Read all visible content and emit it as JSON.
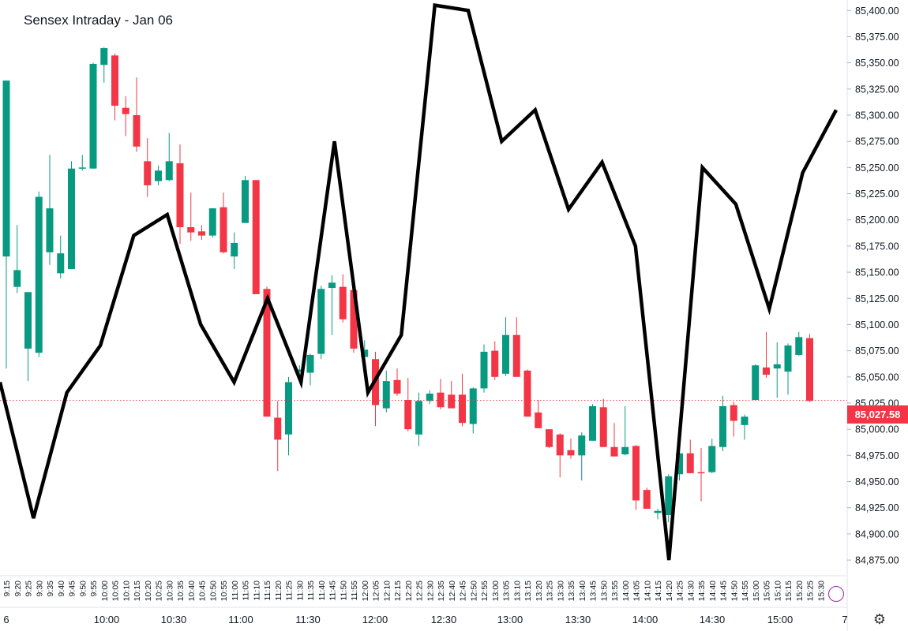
{
  "chart_data": {
    "type": "candlestick+line",
    "title": "Sensex Intraday - Jan 06",
    "current_price": "85,027.58",
    "current_price_value": 85027.58,
    "ylim": [
      84860,
      85410
    ],
    "y_ticks": [
      "84,875.00",
      "84,900.00",
      "84,925.00",
      "84,950.00",
      "84,975.00",
      "85,000.00",
      "85,025.00",
      "85,050.00",
      "85,075.00",
      "85,100.00",
      "85,125.00",
      "85,150.00",
      "85,175.00",
      "85,200.00",
      "85,225.00",
      "85,250.00",
      "85,275.00",
      "85,300.00",
      "85,325.00",
      "85,350.00",
      "85,375.00",
      "85,400.00"
    ],
    "x_ticks_small": [
      "9:15",
      "9:20",
      "9:25",
      "9:30",
      "9:35",
      "9:40",
      "9:45",
      "9:50",
      "9:55",
      "10:00",
      "10:05",
      "10:10",
      "10:15",
      "10:20",
      "10:25",
      "10:30",
      "10:35",
      "10:40",
      "10:45",
      "10:50",
      "10:55",
      "11:00",
      "11:05",
      "11:10",
      "11:15",
      "11:20",
      "11:25",
      "11:30",
      "11:35",
      "11:40",
      "11:45",
      "11:50",
      "11:55",
      "12:00",
      "12:05",
      "12:10",
      "12:15",
      "12:20",
      "12:25",
      "12:30",
      "12:35",
      "12:40",
      "12:45",
      "12:50",
      "12:55",
      "13:00",
      "13:05",
      "13:10",
      "13:15",
      "13:20",
      "13:25",
      "13:30",
      "13:35",
      "13:40",
      "13:45",
      "13:50",
      "13:55",
      "14:00",
      "14:05",
      "14:10",
      "14:15",
      "14:20",
      "14:25",
      "14:30",
      "14:35",
      "14:40",
      "14:45",
      "14:50",
      "14:55",
      "15:00",
      "15:05",
      "15:10",
      "15:15",
      "15:20",
      "15:25",
      "15:30"
    ],
    "x_ticks_large": [
      "6",
      "10:00",
      "10:30",
      "11:00",
      "11:30",
      "12:00",
      "12:30",
      "13:00",
      "13:30",
      "14:00",
      "14:30",
      "15:00",
      "7"
    ],
    "candles": [
      {
        "o": 85165,
        "h": 85333,
        "l": 85058,
        "c": 85333
      },
      {
        "o": 85136,
        "h": 85195,
        "l": 85130,
        "c": 85152
      },
      {
        "o": 85077,
        "h": 85130,
        "l": 85046,
        "c": 85131
      },
      {
        "o": 85073,
        "h": 85227,
        "l": 85069,
        "c": 85222
      },
      {
        "o": 85169,
        "h": 85262,
        "l": 85157,
        "c": 85211
      },
      {
        "o": 85149,
        "h": 85185,
        "l": 85144,
        "c": 85168
      },
      {
        "o": 85153,
        "h": 85256,
        "l": 85153,
        "c": 85249
      },
      {
        "o": 85250,
        "h": 85262,
        "l": 85247,
        "c": 85250
      },
      {
        "o": 85249,
        "h": 85350,
        "l": 85249,
        "c": 85349
      },
      {
        "o": 85348,
        "h": 85365,
        "l": 85331,
        "c": 85364
      },
      {
        "o": 85357,
        "h": 85359,
        "l": 85295,
        "c": 85309
      },
      {
        "o": 85307,
        "h": 85318,
        "l": 85280,
        "c": 85301
      },
      {
        "o": 85300,
        "h": 85336,
        "l": 85265,
        "c": 85270
      },
      {
        "o": 85256,
        "h": 85278,
        "l": 85222,
        "c": 85233
      },
      {
        "o": 85237,
        "h": 85252,
        "l": 85233,
        "c": 85247
      },
      {
        "o": 85238,
        "h": 85283,
        "l": 85237,
        "c": 85256
      },
      {
        "o": 85254,
        "h": 85272,
        "l": 85177,
        "c": 85193
      },
      {
        "o": 85193,
        "h": 85226,
        "l": 85180,
        "c": 85188
      },
      {
        "o": 85189,
        "h": 85195,
        "l": 85181,
        "c": 85185
      },
      {
        "o": 85185,
        "h": 85211,
        "l": 85183,
        "c": 85211
      },
      {
        "o": 85212,
        "h": 85226,
        "l": 85168,
        "c": 85169
      },
      {
        "o": 85165,
        "h": 85188,
        "l": 85153,
        "c": 85178
      },
      {
        "o": 85197,
        "h": 85242,
        "l": 85197,
        "c": 85238
      },
      {
        "o": 85238,
        "h": 85238,
        "l": 85129,
        "c": 85129
      },
      {
        "o": 85134,
        "h": 85136,
        "l": 85012,
        "c": 85012
      },
      {
        "o": 85011,
        "h": 85027,
        "l": 84960,
        "c": 84990
      },
      {
        "o": 84995,
        "h": 85050,
        "l": 84975,
        "c": 85045
      },
      {
        "o": 85055,
        "h": 85061,
        "l": 85050,
        "c": 85057
      },
      {
        "o": 85054,
        "h": 85072,
        "l": 85042,
        "c": 85071
      },
      {
        "o": 85072,
        "h": 85137,
        "l": 85067,
        "c": 85134
      },
      {
        "o": 85135,
        "h": 85147,
        "l": 85090,
        "c": 85140
      },
      {
        "o": 85136,
        "h": 85148,
        "l": 85102,
        "c": 85105
      },
      {
        "o": 85133,
        "h": 85136,
        "l": 85073,
        "c": 85077
      },
      {
        "o": 85069,
        "h": 85085,
        "l": 85064,
        "c": 85076
      },
      {
        "o": 85067,
        "h": 85074,
        "l": 85003,
        "c": 85023
      },
      {
        "o": 85020,
        "h": 85056,
        "l": 85016,
        "c": 85046
      },
      {
        "o": 85047,
        "h": 85058,
        "l": 85032,
        "c": 85034
      },
      {
        "o": 85028,
        "h": 85049,
        "l": 84998,
        "c": 85000
      },
      {
        "o": 84995,
        "h": 85035,
        "l": 84984,
        "c": 85027
      },
      {
        "o": 85027,
        "h": 85037,
        "l": 85024,
        "c": 85034
      },
      {
        "o": 85035,
        "h": 85048,
        "l": 85019,
        "c": 85021
      },
      {
        "o": 85033,
        "h": 85046,
        "l": 85020,
        "c": 85020
      },
      {
        "o": 85033,
        "h": 85053,
        "l": 85003,
        "c": 85006
      },
      {
        "o": 85005,
        "h": 85040,
        "l": 84996,
        "c": 85039
      },
      {
        "o": 85039,
        "h": 85081,
        "l": 85035,
        "c": 85074
      },
      {
        "o": 85075,
        "h": 85084,
        "l": 85047,
        "c": 85050
      },
      {
        "o": 85053,
        "h": 85107,
        "l": 85051,
        "c": 85090
      },
      {
        "o": 85090,
        "h": 85107,
        "l": 85050,
        "c": 85050
      },
      {
        "o": 85056,
        "h": 85057,
        "l": 85012,
        "c": 85012
      },
      {
        "o": 85016,
        "h": 85028,
        "l": 85005,
        "c": 85001
      },
      {
        "o": 85000,
        "h": 84999,
        "l": 84982,
        "c": 84983
      },
      {
        "o": 84995,
        "h": 84996,
        "l": 84954,
        "c": 84975
      },
      {
        "o": 84980,
        "h": 84991,
        "l": 84972,
        "c": 84975
      },
      {
        "o": 84975,
        "h": 84997,
        "l": 84951,
        "c": 84994
      },
      {
        "o": 84989,
        "h": 85024,
        "l": 84989,
        "c": 85022
      },
      {
        "o": 85021,
        "h": 85029,
        "l": 84983,
        "c": 84983
      },
      {
        "o": 84983,
        "h": 85006,
        "l": 84974,
        "c": 84974
      },
      {
        "o": 84976,
        "h": 85022,
        "l": 84975,
        "c": 84983
      },
      {
        "o": 84984,
        "h": 84985,
        "l": 84923,
        "c": 84932
      },
      {
        "o": 84942,
        "h": 84944,
        "l": 84924,
        "c": 84924
      },
      {
        "o": 84920,
        "h": 84924,
        "l": 84914,
        "c": 84922
      },
      {
        "o": 84918,
        "h": 84957,
        "l": 84911,
        "c": 84955
      },
      {
        "o": 84957,
        "h": 84982,
        "l": 84951,
        "c": 84977
      },
      {
        "o": 84977,
        "h": 84990,
        "l": 84958,
        "c": 84958
      },
      {
        "o": 84959,
        "h": 84982,
        "l": 84931,
        "c": 84958
      },
      {
        "o": 84959,
        "h": 84991,
        "l": 84958,
        "c": 84984
      },
      {
        "o": 84983,
        "h": 85032,
        "l": 84979,
        "c": 85022
      },
      {
        "o": 85023,
        "h": 85026,
        "l": 84993,
        "c": 85008
      },
      {
        "o": 85004,
        "h": 85014,
        "l": 84990,
        "c": 85012
      },
      {
        "o": 85028,
        "h": 85062,
        "l": 85028,
        "c": 85061
      },
      {
        "o": 85059,
        "h": 85093,
        "l": 85049,
        "c": 85052
      },
      {
        "o": 85058,
        "h": 85083,
        "l": 85030,
        "c": 85062
      },
      {
        "o": 85055,
        "h": 85082,
        "l": 85033,
        "c": 85080
      },
      {
        "o": 85071,
        "h": 85093,
        "l": 85070,
        "c": 85088
      },
      {
        "o": 85087,
        "h": 85091,
        "l": 85026,
        "c": 85027
      }
    ],
    "line_y": [
      85045,
      84915,
      85035,
      85080,
      85185,
      85205,
      85100,
      85045,
      85125,
      85045,
      85275,
      85035,
      85090,
      85405,
      85400,
      85275,
      85305,
      85210,
      85255,
      85175,
      84875,
      85250,
      85215,
      85115,
      85245,
      85305
    ],
    "colors": {
      "up": "#089981",
      "down": "#f23645",
      "line": "#000000",
      "grid": "#f0f3fa",
      "axis_text": "#131722",
      "price_line": "#f23645"
    }
  }
}
